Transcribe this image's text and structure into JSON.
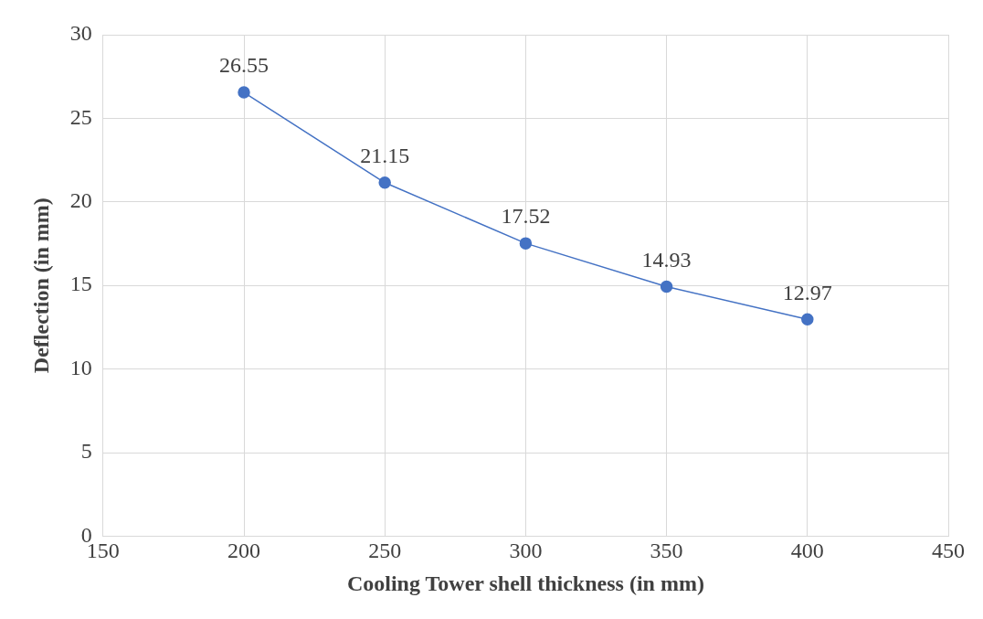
{
  "chart_data": {
    "type": "line",
    "xlabel": "Cooling Tower shell thickness (in mm)",
    "ylabel": "Deflection (in mm)",
    "x": [
      200,
      250,
      300,
      350,
      400
    ],
    "series": [
      {
        "color": "#4472c4",
        "values": [
          26.55,
          21.15,
          17.52,
          14.93,
          12.97
        ]
      }
    ],
    "xlim": [
      150,
      450
    ],
    "xticks": [
      150,
      200,
      250,
      300,
      350,
      400,
      450
    ],
    "ylim": [
      0,
      30
    ],
    "yticks": [
      0,
      5,
      10,
      15,
      20,
      25,
      30
    ],
    "grid": true,
    "marker": "circle",
    "line_style": "solid",
    "data_labels": true
  }
}
